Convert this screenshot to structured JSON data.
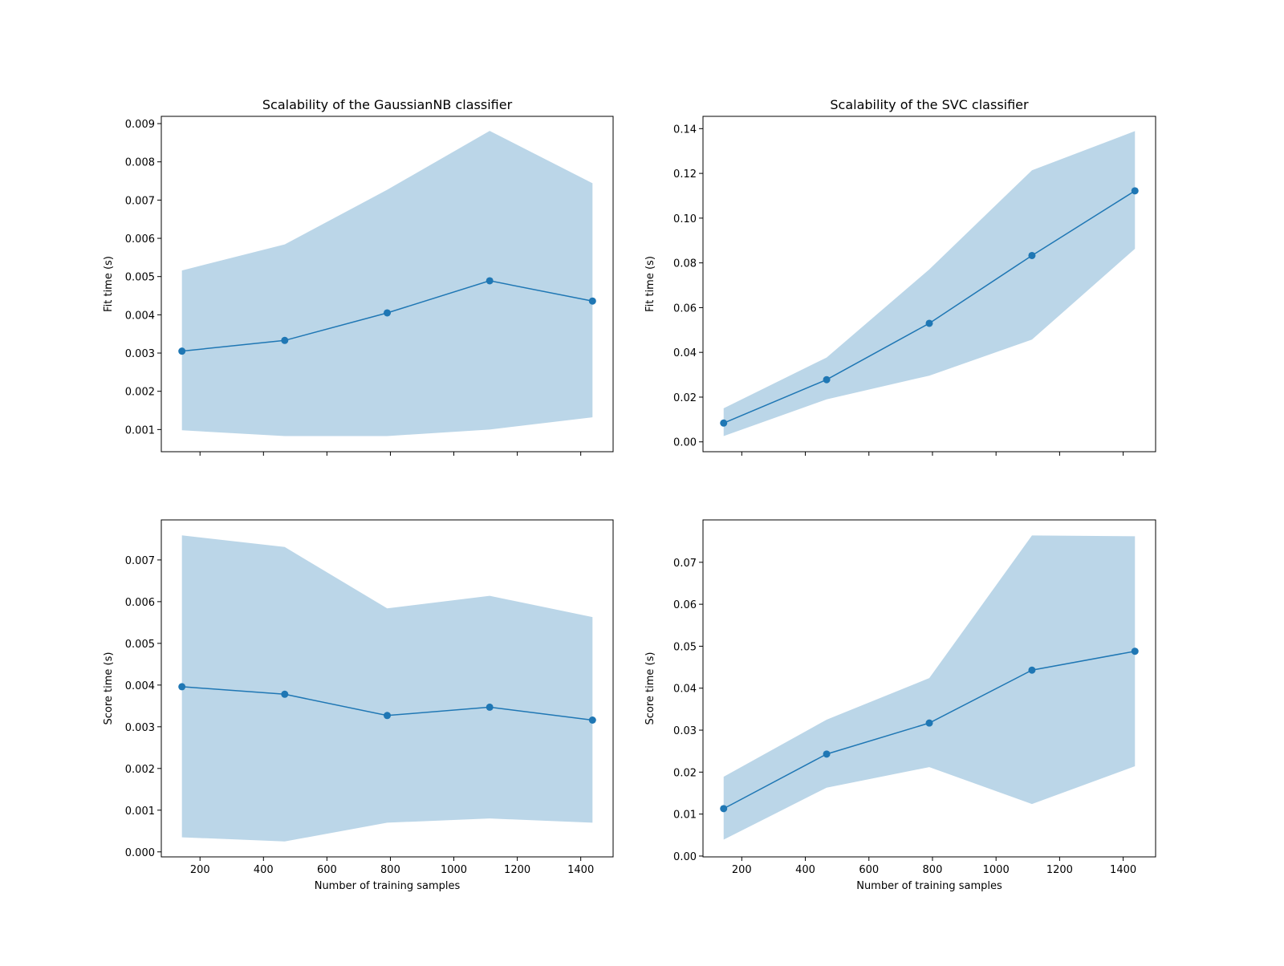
{
  "colors": {
    "line": "#1f77b4",
    "band": "#1f77b4",
    "band_opacity": 0.3
  },
  "chart_data": [
    {
      "type": "line",
      "title": "Scalability of the GaussianNB classifier",
      "xlabel": "",
      "ylabel": "Fit time (s)",
      "x": [
        143,
        467,
        790,
        1113,
        1437
      ],
      "values": [
        0.00305,
        0.00333,
        0.00405,
        0.00489,
        0.00436
      ],
      "band_upper": [
        0.00516,
        0.00584,
        0.00727,
        0.00881,
        0.00744
      ],
      "band_lower": [
        0.00098,
        0.00083,
        0.00083,
        0.001,
        0.00132
      ],
      "xlim": [
        78,
        1502
      ],
      "ylim": [
        0.00042,
        0.00919
      ],
      "xticks": [
        200,
        400,
        600,
        800,
        1000,
        1200,
        1400
      ],
      "xtick_labels_visible": false,
      "yticks": [
        0.001,
        0.002,
        0.003,
        0.004,
        0.005,
        0.006,
        0.007,
        0.008,
        0.009
      ],
      "ytick_labels": [
        "0.001",
        "0.002",
        "0.003",
        "0.004",
        "0.005",
        "0.006",
        "0.007",
        "0.008",
        "0.009"
      ]
    },
    {
      "type": "line",
      "title": "Scalability of the SVC classifier",
      "xlabel": "",
      "ylabel": "Fit time (s)",
      "x": [
        143,
        467,
        790,
        1113,
        1437
      ],
      "values": [
        0.0084,
        0.0278,
        0.053,
        0.0833,
        0.1122
      ],
      "band_upper": [
        0.015,
        0.0377,
        0.0771,
        0.1214,
        0.1389
      ],
      "band_lower": [
        0.0026,
        0.019,
        0.0296,
        0.0457,
        0.0863
      ],
      "xlim": [
        78,
        1502
      ],
      "ylim": [
        -0.0044,
        0.1455
      ],
      "xticks": [
        200,
        400,
        600,
        800,
        1000,
        1200,
        1400
      ],
      "xtick_labels_visible": false,
      "yticks": [
        0,
        0.02,
        0.04,
        0.06,
        0.08,
        0.1,
        0.12,
        0.14
      ],
      "ytick_labels": [
        "0.00",
        "0.02",
        "0.04",
        "0.06",
        "0.08",
        "0.10",
        "0.12",
        "0.14"
      ]
    },
    {
      "type": "line",
      "title": "",
      "xlabel": "Number of training samples",
      "ylabel": "Score time (s)",
      "x": [
        143,
        467,
        790,
        1113,
        1437
      ],
      "values": [
        0.00396,
        0.00378,
        0.00327,
        0.00347,
        0.00316
      ],
      "band_upper": [
        0.00759,
        0.00731,
        0.00584,
        0.00614,
        0.00563
      ],
      "band_lower": [
        0.00035,
        0.00025,
        0.0007,
        0.0008,
        0.0007
      ],
      "xlim": [
        78,
        1502
      ],
      "ylim": [
        -0.00012,
        0.00796
      ],
      "xticks": [
        200,
        400,
        600,
        800,
        1000,
        1200,
        1400
      ],
      "xtick_labels_visible": true,
      "xtick_labels": [
        "200",
        "400",
        "600",
        "800",
        "1000",
        "1200",
        "1400"
      ],
      "yticks": [
        0,
        0.001,
        0.002,
        0.003,
        0.004,
        0.005,
        0.006,
        0.007
      ],
      "ytick_labels": [
        "0.000",
        "0.001",
        "0.002",
        "0.003",
        "0.004",
        "0.005",
        "0.006",
        "0.007"
      ]
    },
    {
      "type": "line",
      "title": "",
      "xlabel": "Number of training samples",
      "ylabel": "Score time (s)",
      "x": [
        143,
        467,
        790,
        1113,
        1437
      ],
      "values": [
        0.0113,
        0.0243,
        0.0317,
        0.0443,
        0.0488
      ],
      "band_upper": [
        0.0189,
        0.0325,
        0.0424,
        0.0764,
        0.0762
      ],
      "band_lower": [
        0.0039,
        0.0163,
        0.0212,
        0.0124,
        0.0214
      ],
      "xlim": [
        78,
        1502
      ],
      "ylim": [
        -0.0002,
        0.0801
      ],
      "xticks": [
        200,
        400,
        600,
        800,
        1000,
        1200,
        1400
      ],
      "xtick_labels_visible": true,
      "xtick_labels": [
        "200",
        "400",
        "600",
        "800",
        "1000",
        "1200",
        "1400"
      ],
      "yticks": [
        0,
        0.01,
        0.02,
        0.03,
        0.04,
        0.05,
        0.06,
        0.07
      ],
      "ytick_labels": [
        "0.00",
        "0.01",
        "0.02",
        "0.03",
        "0.04",
        "0.05",
        "0.06",
        "0.07"
      ]
    }
  ]
}
